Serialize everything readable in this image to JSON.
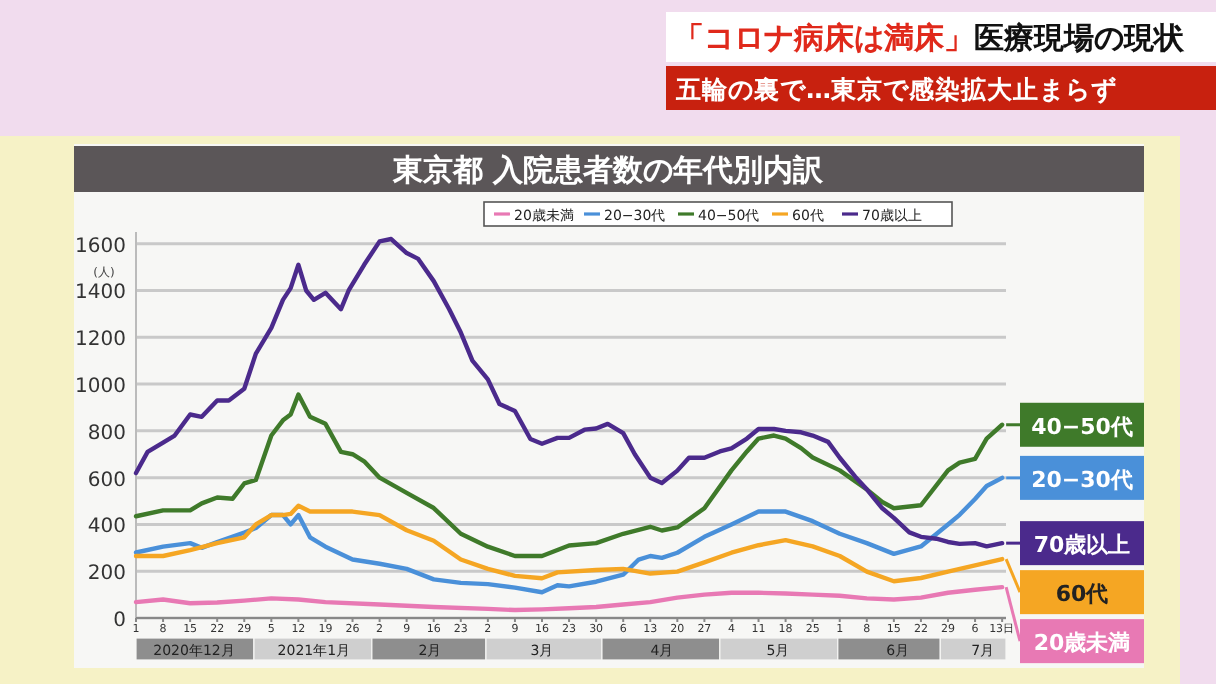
{
  "chart_data": {
    "type": "line",
    "title": "東京都 入院患者数の年代別内訳",
    "ylabel": "(人)",
    "annotations": [
      "「コロナ病床は満床」",
      "医療現場の現状",
      "五輪の裏で…東京で感染拡大止まらず"
    ],
    "series": [
      {
        "name": "20歳未満",
        "color": "#e879b4",
        "x": [
          "2020-12-01",
          "2020-12-08",
          "2020-12-15",
          "2020-12-22",
          "2020-12-29",
          "2021-01-05",
          "2021-01-12",
          "2021-01-19",
          "2021-02-02",
          "2021-02-16",
          "2021-03-02",
          "2021-03-09",
          "2021-03-16",
          "2021-03-23",
          "2021-03-30",
          "2021-04-06",
          "2021-04-13",
          "2021-04-20",
          "2021-04-27",
          "2021-05-04",
          "2021-05-11",
          "2021-05-18",
          "2021-05-25",
          "2021-06-01",
          "2021-06-08",
          "2021-06-15",
          "2021-06-22",
          "2021-06-29",
          "2021-07-06",
          "2021-07-13"
        ],
        "values": [
          68,
          79,
          63,
          66,
          74,
          84,
          79,
          68,
          58,
          47,
          39,
          34,
          37,
          42,
          47,
          58,
          68,
          87,
          100,
          108,
          108,
          105,
          100,
          95,
          84,
          79,
          87,
          108,
          121,
          132
        ]
      },
      {
        "name": "20−30代",
        "color": "#4a90d9",
        "x": [
          "2020-12-01",
          "2020-12-08",
          "2020-12-15",
          "2020-12-18",
          "2020-12-22",
          "2020-12-29",
          "2021-01-01",
          "2021-01-05",
          "2021-01-08",
          "2021-01-10",
          "2021-01-12",
          "2021-01-15",
          "2021-01-19",
          "2021-01-26",
          "2021-02-02",
          "2021-02-09",
          "2021-02-16",
          "2021-02-23",
          "2021-03-02",
          "2021-03-09",
          "2021-03-16",
          "2021-03-20",
          "2021-03-23",
          "2021-03-30",
          "2021-04-06",
          "2021-04-10",
          "2021-04-13",
          "2021-04-16",
          "2021-04-20",
          "2021-04-27",
          "2021-05-04",
          "2021-05-11",
          "2021-05-18",
          "2021-05-25",
          "2021-06-01",
          "2021-06-08",
          "2021-06-15",
          "2021-06-22",
          "2021-06-29",
          "2021-07-02",
          "2021-07-06",
          "2021-07-09",
          "2021-07-13"
        ],
        "values": [
          280,
          305,
          320,
          300,
          325,
          365,
          385,
          440,
          440,
          400,
          440,
          345,
          305,
          250,
          232,
          210,
          165,
          150,
          145,
          130,
          110,
          140,
          135,
          155,
          185,
          250,
          265,
          257,
          279,
          347,
          400,
          455,
          455,
          414,
          360,
          320,
          274,
          306,
          400,
          441,
          509,
          564,
          599
        ]
      },
      {
        "name": "40−50代",
        "color": "#3f7a2a",
        "x": [
          "2020-12-01",
          "2020-12-08",
          "2020-12-15",
          "2020-12-18",
          "2020-12-22",
          "2020-12-26",
          "2020-12-29",
          "2021-01-01",
          "2021-01-05",
          "2021-01-08",
          "2021-01-10",
          "2021-01-12",
          "2021-01-15",
          "2021-01-19",
          "2021-01-23",
          "2021-01-26",
          "2021-01-29",
          "2021-02-02",
          "2021-02-09",
          "2021-02-16",
          "2021-02-23",
          "2021-03-02",
          "2021-03-09",
          "2021-03-16",
          "2021-03-23",
          "2021-03-30",
          "2021-04-06",
          "2021-04-13",
          "2021-04-16",
          "2021-04-20",
          "2021-04-27",
          "2021-05-04",
          "2021-05-08",
          "2021-05-11",
          "2021-05-15",
          "2021-05-18",
          "2021-05-22",
          "2021-05-25",
          "2021-06-01",
          "2021-06-08",
          "2021-06-12",
          "2021-06-15",
          "2021-06-22",
          "2021-06-29",
          "2021-07-02",
          "2021-07-06",
          "2021-07-09",
          "2021-07-13"
        ],
        "values": [
          435,
          460,
          460,
          490,
          515,
          510,
          575,
          590,
          780,
          845,
          870,
          955,
          860,
          830,
          710,
          700,
          670,
          600,
          535,
          470,
          360,
          305,
          265,
          265,
          310,
          320,
          360,
          390,
          374,
          387,
          469,
          631,
          712,
          767,
          780,
          767,
          726,
          686,
          631,
          550,
          496,
          469,
          482,
          631,
          664,
          680,
          767,
          826
        ]
      },
      {
        "name": "60代",
        "color": "#f5a623",
        "x": [
          "2020-12-01",
          "2020-12-08",
          "2020-12-15",
          "2020-12-22",
          "2020-12-29",
          "2021-01-01",
          "2021-01-05",
          "2021-01-08",
          "2021-01-10",
          "2021-01-12",
          "2021-01-15",
          "2021-01-19",
          "2021-01-26",
          "2021-02-02",
          "2021-02-09",
          "2021-02-16",
          "2021-02-23",
          "2021-03-02",
          "2021-03-09",
          "2021-03-16",
          "2021-03-20",
          "2021-03-30",
          "2021-04-06",
          "2021-04-13",
          "2021-04-20",
          "2021-04-27",
          "2021-05-04",
          "2021-05-11",
          "2021-05-18",
          "2021-05-25",
          "2021-06-01",
          "2021-06-08",
          "2021-06-15",
          "2021-06-22",
          "2021-06-29",
          "2021-07-06",
          "2021-07-13"
        ],
        "values": [
          265,
          265,
          290,
          320,
          345,
          400,
          440,
          440,
          445,
          480,
          455,
          455,
          455,
          440,
          375,
          330,
          250,
          210,
          180,
          170,
          195,
          205,
          210,
          190,
          198,
          238,
          279,
          311,
          333,
          306,
          265,
          198,
          157,
          171,
          198,
          225,
          252
        ]
      },
      {
        "name": "70歳以上",
        "color": "#4b2a8c",
        "x": [
          "2020-12-01",
          "2020-12-04",
          "2020-12-08",
          "2020-12-11",
          "2020-12-15",
          "2020-12-18",
          "2020-12-22",
          "2020-12-25",
          "2020-12-29",
          "2021-01-01",
          "2021-01-05",
          "2021-01-08",
          "2021-01-10",
          "2021-01-12",
          "2021-01-14",
          "2021-01-16",
          "2021-01-19",
          "2021-01-23",
          "2021-01-25",
          "2021-01-29",
          "2021-02-02",
          "2021-02-05",
          "2021-02-09",
          "2021-02-12",
          "2021-02-16",
          "2021-02-20",
          "2021-02-23",
          "2021-02-26",
          "2021-03-02",
          "2021-03-05",
          "2021-03-09",
          "2021-03-13",
          "2021-03-16",
          "2021-03-20",
          "2021-03-23",
          "2021-03-27",
          "2021-03-30",
          "2021-04-02",
          "2021-04-06",
          "2021-04-09",
          "2021-04-13",
          "2021-04-16",
          "2021-04-20",
          "2021-04-23",
          "2021-04-27",
          "2021-05-01",
          "2021-05-04",
          "2021-05-08",
          "2021-05-11",
          "2021-05-15",
          "2021-05-18",
          "2021-05-22",
          "2021-05-25",
          "2021-05-29",
          "2021-06-01",
          "2021-06-05",
          "2021-06-08",
          "2021-06-12",
          "2021-06-15",
          "2021-06-19",
          "2021-06-22",
          "2021-06-26",
          "2021-06-29",
          "2021-07-02",
          "2021-07-06",
          "2021-07-09",
          "2021-07-13"
        ],
        "values": [
          620,
          710,
          750,
          780,
          870,
          860,
          930,
          930,
          980,
          1130,
          1240,
          1360,
          1410,
          1510,
          1400,
          1360,
          1390,
          1320,
          1400,
          1510,
          1610,
          1620,
          1560,
          1535,
          1440,
          1320,
          1220,
          1100,
          1020,
          915,
          885,
          765,
          745,
          770,
          770,
          805,
          810,
          830,
          790,
          700,
          600,
          577,
          630,
          685,
          685,
          712,
          725,
          767,
          808,
          808,
          800,
          794,
          780,
          753,
          685,
          604,
          550,
          469,
          428,
          366,
          347,
          339,
          325,
          317,
          320,
          306,
          320
        ]
      }
    ],
    "xlim": [
      "2020-12-01",
      "2021-07-14"
    ],
    "xticks": [
      {
        "value": "2020-12-01",
        "label": "1"
      },
      {
        "value": "2020-12-08",
        "label": "8"
      },
      {
        "value": "2020-12-15",
        "label": "15"
      },
      {
        "value": "2020-12-22",
        "label": "22"
      },
      {
        "value": "2020-12-29",
        "label": "29"
      },
      {
        "value": "2021-01-05",
        "label": "5"
      },
      {
        "value": "2021-01-12",
        "label": "12"
      },
      {
        "value": "2021-01-19",
        "label": "19"
      },
      {
        "value": "2021-01-26",
        "label": "26"
      },
      {
        "value": "2021-02-02",
        "label": "2"
      },
      {
        "value": "2021-02-09",
        "label": "9"
      },
      {
        "value": "2021-02-16",
        "label": "16"
      },
      {
        "value": "2021-02-23",
        "label": "23"
      },
      {
        "value": "2021-03-02",
        "label": "2"
      },
      {
        "value": "2021-03-09",
        "label": "9"
      },
      {
        "value": "2021-03-16",
        "label": "16"
      },
      {
        "value": "2021-03-23",
        "label": "23"
      },
      {
        "value": "2021-03-30",
        "label": "30"
      },
      {
        "value": "2021-04-06",
        "label": "6"
      },
      {
        "value": "2021-04-13",
        "label": "13"
      },
      {
        "value": "2021-04-20",
        "label": "20"
      },
      {
        "value": "2021-04-27",
        "label": "27"
      },
      {
        "value": "2021-05-04",
        "label": "4"
      },
      {
        "value": "2021-05-11",
        "label": "11"
      },
      {
        "value": "2021-05-18",
        "label": "18"
      },
      {
        "value": "2021-05-25",
        "label": "25"
      },
      {
        "value": "2021-06-01",
        "label": "1"
      },
      {
        "value": "2021-06-08",
        "label": "8"
      },
      {
        "value": "2021-06-15",
        "label": "15"
      },
      {
        "value": "2021-06-22",
        "label": "22"
      },
      {
        "value": "2021-06-29",
        "label": "29"
      },
      {
        "value": "2021-07-06",
        "label": "6"
      },
      {
        "value": "2021-07-13",
        "label": "13日"
      }
    ],
    "ylim": [
      0,
      1650
    ],
    "yticks": [
      0,
      200,
      400,
      600,
      800,
      1000,
      1200,
      1400,
      1600
    ],
    "x2lim": [
      "2020-12-01",
      "2021-07-14"
    ],
    "x2ticks": [
      {
        "value": "2020-12-16",
        "label": "2020年12月"
      },
      {
        "value": "2021-01-16",
        "label": "2021年1月"
      },
      {
        "value": "2021-02-15",
        "label": "2月"
      },
      {
        "value": "2021-03-16",
        "label": "3月"
      },
      {
        "value": "2021-04-16",
        "label": "4月"
      },
      {
        "value": "2021-05-16",
        "label": "5月"
      },
      {
        "value": "2021-06-16",
        "label": "6月"
      },
      {
        "value": "2021-07-08",
        "label": "7月"
      }
    ],
    "grid": "y",
    "legend": "top right",
    "marker": "none",
    "line_style": "solid"
  }
}
